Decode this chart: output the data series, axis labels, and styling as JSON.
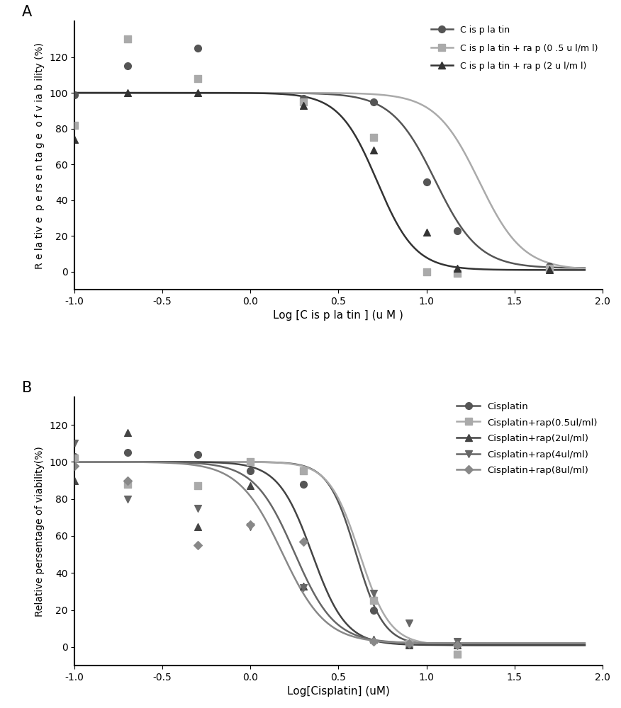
{
  "panel_A": {
    "title": "A",
    "xlabel": "Log [C is p la tin ] (u M )",
    "ylabel": "R e la tiv e  p e rs e n ta g e  o f v ia b ility (%)",
    "xlim": [
      -1.0,
      2.0
    ],
    "ylim": [
      -10,
      140
    ],
    "yticks": [
      0,
      20,
      40,
      60,
      80,
      100,
      120
    ],
    "xticks": [
      -1.0,
      -0.5,
      0.0,
      0.5,
      1.0,
      1.5,
      2.0
    ],
    "series": [
      {
        "label": "C is p la tin",
        "color": "#555555",
        "marker": "o",
        "markersize": 7,
        "linewidth": 1.8,
        "x_data": [
          -1.0,
          -0.699,
          -0.301,
          0.301,
          0.699,
          1.0,
          1.176,
          1.699
        ],
        "y_data": [
          99,
          115,
          125,
          97,
          95,
          50,
          23,
          3
        ],
        "ec50": 1.05,
        "hill": 3.5,
        "top": 100,
        "bottom": 2
      },
      {
        "label": "C is p la tin + ra p (0 .5 u l/m l)",
        "color": "#aaaaaa",
        "marker": "s",
        "markersize": 7,
        "linewidth": 1.8,
        "x_data": [
          -1.0,
          -0.699,
          -0.301,
          0.301,
          0.699,
          1.0,
          1.176,
          1.699
        ],
        "y_data": [
          82,
          130,
          108,
          95,
          75,
          0,
          -1,
          2
        ],
        "ec50": 1.3,
        "hill": 3.5,
        "top": 100,
        "bottom": 1
      },
      {
        "label": "C is p la tin + ra p (2 u l/m l)",
        "color": "#333333",
        "marker": "^",
        "markersize": 7,
        "linewidth": 1.8,
        "x_data": [
          -1.0,
          -0.699,
          -0.301,
          0.301,
          0.699,
          1.0,
          1.176,
          1.699
        ],
        "y_data": [
          74,
          100,
          100,
          93,
          68,
          22,
          2,
          1
        ],
        "ec50": 0.72,
        "hill": 4.0,
        "top": 100,
        "bottom": 1
      }
    ]
  },
  "panel_B": {
    "title": "B",
    "xlabel": "Log[Cisplatin] (uM)",
    "ylabel": "Relative persentage of viability(%)",
    "xlim": [
      -1.0,
      2.0
    ],
    "ylim": [
      -10,
      135
    ],
    "yticks": [
      0,
      20,
      40,
      60,
      80,
      100,
      120
    ],
    "xticks": [
      -1.0,
      -0.5,
      0.0,
      0.5,
      1.0,
      1.5,
      2.0
    ],
    "series": [
      {
        "label": "Cisplatin",
        "color": "#555555",
        "marker": "o",
        "markersize": 7,
        "linewidth": 1.8,
        "x_data": [
          -1.0,
          -0.699,
          -0.301,
          0.0,
          0.301,
          0.699,
          0.903,
          1.176
        ],
        "y_data": [
          103,
          105,
          104,
          95,
          88,
          20,
          2,
          1
        ],
        "ec50": 0.6,
        "hill": 5.5,
        "top": 100,
        "bottom": 1
      },
      {
        "label": "Cisplatin+rap(0.5ul/ml)",
        "color": "#aaaaaa",
        "marker": "s",
        "markersize": 7,
        "linewidth": 1.8,
        "x_data": [
          -1.0,
          -0.699,
          -0.301,
          0.0,
          0.301,
          0.699,
          0.903,
          1.176
        ],
        "y_data": [
          102,
          88,
          87,
          100,
          95,
          25,
          2,
          -4
        ],
        "ec50": 0.62,
        "hill": 5.0,
        "top": 100,
        "bottom": 1
      },
      {
        "label": "Cisplatin+rap(2ul/ml)",
        "color": "#444444",
        "marker": "^",
        "markersize": 7,
        "linewidth": 1.8,
        "x_data": [
          -1.0,
          -0.699,
          -0.301,
          0.0,
          0.301,
          0.699,
          0.903,
          1.176
        ],
        "y_data": [
          90,
          116,
          65,
          87,
          33,
          4,
          1,
          1
        ],
        "ec50": 0.35,
        "hill": 4.5,
        "top": 100,
        "bottom": 1
      },
      {
        "label": "Cisplatin+rap(4ul/ml)",
        "color": "#666666",
        "marker": "v",
        "markersize": 7,
        "linewidth": 1.8,
        "x_data": [
          -1.0,
          -0.699,
          -0.301,
          0.0,
          0.301,
          0.699,
          0.903,
          1.176
        ],
        "y_data": [
          110,
          80,
          75,
          65,
          32,
          29,
          13,
          3
        ],
        "ec50": 0.25,
        "hill": 3.8,
        "top": 100,
        "bottom": 2
      },
      {
        "label": "Cisplatin+rap(8ul/ml)",
        "color": "#888888",
        "marker": "D",
        "markersize": 6,
        "linewidth": 1.8,
        "x_data": [
          -1.0,
          -0.699,
          -0.301,
          0.0,
          0.301,
          0.699,
          0.903,
          1.176
        ],
        "y_data": [
          98,
          90,
          55,
          66,
          57,
          3,
          2,
          1
        ],
        "ec50": 0.18,
        "hill": 3.5,
        "top": 100,
        "bottom": 2
      }
    ]
  },
  "bg_color": "#ffffff",
  "text_color": "#000000",
  "font_size": 10,
  "label_fontsize": 11
}
